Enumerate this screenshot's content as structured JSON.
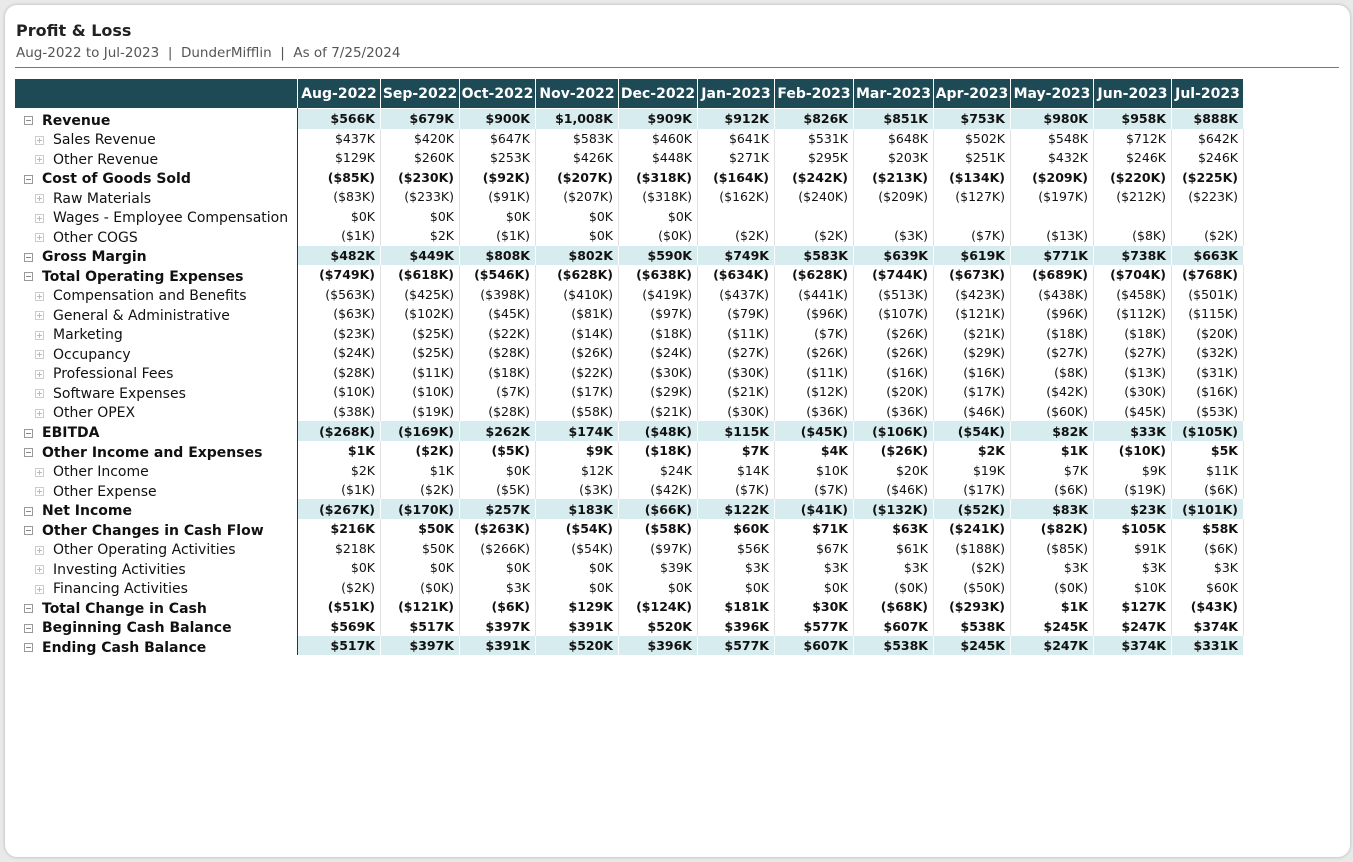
{
  "report": {
    "title": "Profit & Loss",
    "subtitle": "Aug-2022 to Jul-2023  |  DunderMifflin  |  As of 7/25/2024"
  },
  "columns": [
    "Aug-2022",
    "Sep-2022",
    "Oct-2022",
    "Nov-2022",
    "Dec-2022",
    "Jan-2023",
    "Feb-2023",
    "Mar-2023",
    "Apr-2023",
    "May-2023",
    "Jun-2023",
    "Jul-2023"
  ],
  "rows": [
    {
      "label": "Revenue",
      "level": 0,
      "highlight": true,
      "values": [
        "$566K",
        "$679K",
        "$900K",
        "$1,008K",
        "$909K",
        "$912K",
        "$826K",
        "$851K",
        "$753K",
        "$980K",
        "$958K",
        "$888K"
      ]
    },
    {
      "label": "Sales Revenue",
      "level": 1,
      "highlight": false,
      "values": [
        "$437K",
        "$420K",
        "$647K",
        "$583K",
        "$460K",
        "$641K",
        "$531K",
        "$648K",
        "$502K",
        "$548K",
        "$712K",
        "$642K"
      ]
    },
    {
      "label": "Other Revenue",
      "level": 1,
      "highlight": false,
      "values": [
        "$129K",
        "$260K",
        "$253K",
        "$426K",
        "$448K",
        "$271K",
        "$295K",
        "$203K",
        "$251K",
        "$432K",
        "$246K",
        "$246K"
      ]
    },
    {
      "label": "Cost of Goods Sold",
      "level": 0,
      "highlight": false,
      "values": [
        "($85K)",
        "($230K)",
        "($92K)",
        "($207K)",
        "($318K)",
        "($164K)",
        "($242K)",
        "($213K)",
        "($134K)",
        "($209K)",
        "($220K)",
        "($225K)"
      ]
    },
    {
      "label": "Raw Materials",
      "level": 1,
      "highlight": false,
      "values": [
        "($83K)",
        "($233K)",
        "($91K)",
        "($207K)",
        "($318K)",
        "($162K)",
        "($240K)",
        "($209K)",
        "($127K)",
        "($197K)",
        "($212K)",
        "($223K)"
      ]
    },
    {
      "label": "Wages - Employee Compensation",
      "level": 1,
      "highlight": false,
      "values": [
        "$0K",
        "$0K",
        "$0K",
        "$0K",
        "$0K",
        "",
        "",
        "",
        "",
        "",
        "",
        ""
      ]
    },
    {
      "label": "Other COGS",
      "level": 1,
      "highlight": false,
      "values": [
        "($1K)",
        "$2K",
        "($1K)",
        "$0K",
        "($0K)",
        "($2K)",
        "($2K)",
        "($3K)",
        "($7K)",
        "($13K)",
        "($8K)",
        "($2K)"
      ]
    },
    {
      "label": "Gross Margin",
      "level": 0,
      "highlight": true,
      "values": [
        "$482K",
        "$449K",
        "$808K",
        "$802K",
        "$590K",
        "$749K",
        "$583K",
        "$639K",
        "$619K",
        "$771K",
        "$738K",
        "$663K"
      ]
    },
    {
      "label": "Total Operating Expenses",
      "level": 0,
      "highlight": false,
      "values": [
        "($749K)",
        "($618K)",
        "($546K)",
        "($628K)",
        "($638K)",
        "($634K)",
        "($628K)",
        "($744K)",
        "($673K)",
        "($689K)",
        "($704K)",
        "($768K)"
      ]
    },
    {
      "label": "Compensation and Benefits",
      "level": 1,
      "highlight": false,
      "values": [
        "($563K)",
        "($425K)",
        "($398K)",
        "($410K)",
        "($419K)",
        "($437K)",
        "($441K)",
        "($513K)",
        "($423K)",
        "($438K)",
        "($458K)",
        "($501K)"
      ]
    },
    {
      "label": "General & Administrative",
      "level": 1,
      "highlight": false,
      "values": [
        "($63K)",
        "($102K)",
        "($45K)",
        "($81K)",
        "($97K)",
        "($79K)",
        "($96K)",
        "($107K)",
        "($121K)",
        "($96K)",
        "($112K)",
        "($115K)"
      ]
    },
    {
      "label": "Marketing",
      "level": 1,
      "highlight": false,
      "values": [
        "($23K)",
        "($25K)",
        "($22K)",
        "($14K)",
        "($18K)",
        "($11K)",
        "($7K)",
        "($26K)",
        "($21K)",
        "($18K)",
        "($18K)",
        "($20K)"
      ]
    },
    {
      "label": "Occupancy",
      "level": 1,
      "highlight": false,
      "values": [
        "($24K)",
        "($25K)",
        "($28K)",
        "($26K)",
        "($24K)",
        "($27K)",
        "($26K)",
        "($26K)",
        "($29K)",
        "($27K)",
        "($27K)",
        "($32K)"
      ]
    },
    {
      "label": "Professional Fees",
      "level": 1,
      "highlight": false,
      "values": [
        "($28K)",
        "($11K)",
        "($18K)",
        "($22K)",
        "($30K)",
        "($30K)",
        "($11K)",
        "($16K)",
        "($16K)",
        "($8K)",
        "($13K)",
        "($31K)"
      ]
    },
    {
      "label": "Software Expenses",
      "level": 1,
      "highlight": false,
      "values": [
        "($10K)",
        "($10K)",
        "($7K)",
        "($17K)",
        "($29K)",
        "($21K)",
        "($12K)",
        "($20K)",
        "($17K)",
        "($42K)",
        "($30K)",
        "($16K)"
      ]
    },
    {
      "label": "Other OPEX",
      "level": 1,
      "highlight": false,
      "values": [
        "($38K)",
        "($19K)",
        "($28K)",
        "($58K)",
        "($21K)",
        "($30K)",
        "($36K)",
        "($36K)",
        "($46K)",
        "($60K)",
        "($45K)",
        "($53K)"
      ]
    },
    {
      "label": "EBITDA",
      "level": 0,
      "highlight": true,
      "values": [
        "($268K)",
        "($169K)",
        "$262K",
        "$174K",
        "($48K)",
        "$115K",
        "($45K)",
        "($106K)",
        "($54K)",
        "$82K",
        "$33K",
        "($105K)"
      ]
    },
    {
      "label": "Other Income and Expenses",
      "level": 0,
      "highlight": false,
      "values": [
        "$1K",
        "($2K)",
        "($5K)",
        "$9K",
        "($18K)",
        "$7K",
        "$4K",
        "($26K)",
        "$2K",
        "$1K",
        "($10K)",
        "$5K"
      ]
    },
    {
      "label": "Other Income",
      "level": 1,
      "highlight": false,
      "values": [
        "$2K",
        "$1K",
        "$0K",
        "$12K",
        "$24K",
        "$14K",
        "$10K",
        "$20K",
        "$19K",
        "$7K",
        "$9K",
        "$11K"
      ]
    },
    {
      "label": "Other Expense",
      "level": 1,
      "highlight": false,
      "values": [
        "($1K)",
        "($2K)",
        "($5K)",
        "($3K)",
        "($42K)",
        "($7K)",
        "($7K)",
        "($46K)",
        "($17K)",
        "($6K)",
        "($19K)",
        "($6K)"
      ]
    },
    {
      "label": "Net Income",
      "level": 0,
      "highlight": true,
      "values": [
        "($267K)",
        "($170K)",
        "$257K",
        "$183K",
        "($66K)",
        "$122K",
        "($41K)",
        "($132K)",
        "($52K)",
        "$83K",
        "$23K",
        "($101K)"
      ]
    },
    {
      "label": "Other Changes in Cash Flow",
      "level": 0,
      "highlight": false,
      "values": [
        "$216K",
        "$50K",
        "($263K)",
        "($54K)",
        "($58K)",
        "$60K",
        "$71K",
        "$63K",
        "($241K)",
        "($82K)",
        "$105K",
        "$58K"
      ]
    },
    {
      "label": "Other Operating Activities",
      "level": 1,
      "highlight": false,
      "values": [
        "$218K",
        "$50K",
        "($266K)",
        "($54K)",
        "($97K)",
        "$56K",
        "$67K",
        "$61K",
        "($188K)",
        "($85K)",
        "$91K",
        "($6K)"
      ]
    },
    {
      "label": "Investing Activities",
      "level": 1,
      "highlight": false,
      "values": [
        "$0K",
        "$0K",
        "$0K",
        "$0K",
        "$39K",
        "$3K",
        "$3K",
        "$3K",
        "($2K)",
        "$3K",
        "$3K",
        "$3K"
      ]
    },
    {
      "label": "Financing Activities",
      "level": 1,
      "highlight": false,
      "values": [
        "($2K)",
        "($0K)",
        "$3K",
        "$0K",
        "$0K",
        "$0K",
        "$0K",
        "($0K)",
        "($50K)",
        "($0K)",
        "$10K",
        "$60K"
      ]
    },
    {
      "label": "Total Change in Cash",
      "level": 0,
      "highlight": false,
      "values": [
        "($51K)",
        "($121K)",
        "($6K)",
        "$129K",
        "($124K)",
        "$181K",
        "$30K",
        "($68K)",
        "($293K)",
        "$1K",
        "$127K",
        "($43K)"
      ]
    },
    {
      "label": "Beginning Cash Balance",
      "level": 0,
      "highlight": false,
      "values": [
        "$569K",
        "$517K",
        "$397K",
        "$391K",
        "$520K",
        "$396K",
        "$577K",
        "$607K",
        "$538K",
        "$245K",
        "$247K",
        "$374K"
      ]
    },
    {
      "label": "Ending Cash Balance",
      "level": 0,
      "highlight": true,
      "values": [
        "$517K",
        "$397K",
        "$391K",
        "$520K",
        "$396K",
        "$577K",
        "$607K",
        "$538K",
        "$245K",
        "$247K",
        "$374K",
        "$331K"
      ]
    }
  ]
}
